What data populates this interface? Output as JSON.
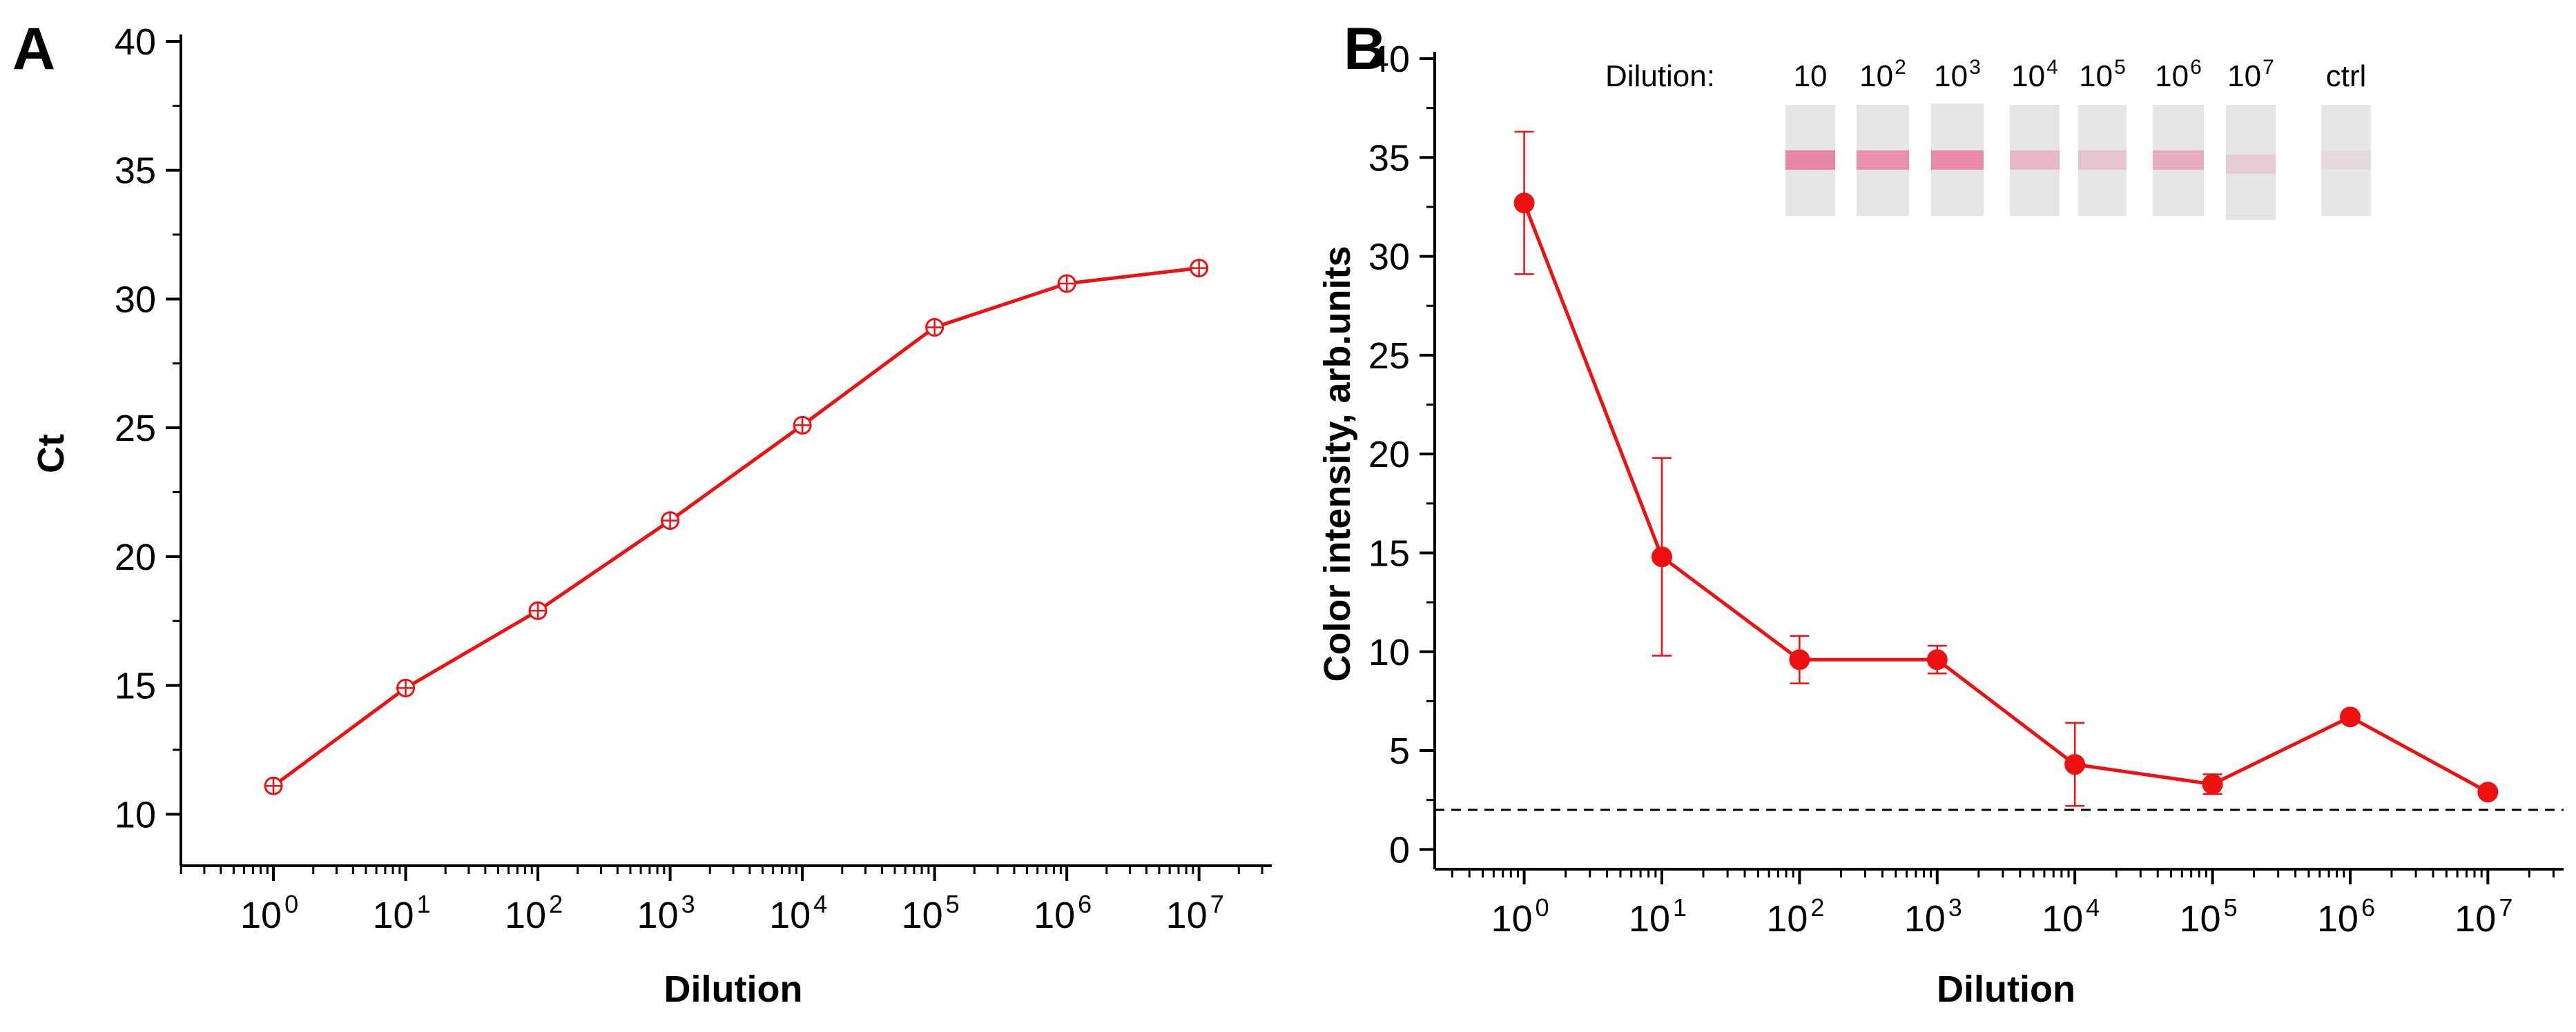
{
  "colors": {
    "series": "#ee1111",
    "axis": "#000000",
    "threshold": "#000000",
    "strip_bg": "#e7e5e6",
    "band": "#e83a72"
  },
  "chart_data": [
    {
      "panel": "A",
      "type": "line",
      "xscale": "log10",
      "x": [
        1,
        10,
        100,
        1000,
        10000,
        100000,
        1000000,
        10000000
      ],
      "xtick_labels": [
        {
          "base": "10",
          "exp": "0"
        },
        {
          "base": "10",
          "exp": "1"
        },
        {
          "base": "10",
          "exp": "2"
        },
        {
          "base": "10",
          "exp": "3"
        },
        {
          "base": "10",
          "exp": "4"
        },
        {
          "base": "10",
          "exp": "5"
        },
        {
          "base": "10",
          "exp": "6"
        },
        {
          "base": "10",
          "exp": "7"
        }
      ],
      "series": [
        {
          "name": "Ct",
          "values": [
            11.1,
            14.9,
            17.9,
            21.4,
            25.1,
            28.9,
            30.6,
            31.2
          ],
          "marker": "crossed-circle"
        }
      ],
      "xlabel": "Dilution",
      "ylabel": "Ct",
      "ylim": [
        8,
        40
      ],
      "yticks": [
        10,
        15,
        20,
        25,
        30,
        35,
        40
      ],
      "xlim_log": [
        -0.7,
        7.55
      ]
    },
    {
      "panel": "B",
      "type": "line",
      "xscale": "log10",
      "x": [
        1,
        10,
        100,
        1000,
        10000,
        100000,
        1000000,
        10000000
      ],
      "xtick_labels": [
        {
          "base": "10",
          "exp": "0"
        },
        {
          "base": "10",
          "exp": "1"
        },
        {
          "base": "10",
          "exp": "2"
        },
        {
          "base": "10",
          "exp": "3"
        },
        {
          "base": "10",
          "exp": "4"
        },
        {
          "base": "10",
          "exp": "5"
        },
        {
          "base": "10",
          "exp": "6"
        },
        {
          "base": "10",
          "exp": "7"
        }
      ],
      "series": [
        {
          "name": "Color intensity",
          "values": [
            32.7,
            14.8,
            9.6,
            9.6,
            4.3,
            3.3,
            6.7,
            2.9
          ],
          "errors": [
            3.6,
            5.0,
            1.2,
            0.7,
            2.1,
            0.5,
            0.0,
            0.0
          ],
          "marker": "filled-circle"
        }
      ],
      "threshold": 2.0,
      "xlabel": "Dilution",
      "ylabel": "Color intensity, arb.units",
      "ylim": [
        -1,
        40
      ],
      "yticks": [
        0,
        5,
        10,
        15,
        20,
        25,
        30,
        35,
        40
      ],
      "xlim_log": [
        -0.65,
        7.55
      ],
      "inset": {
        "title": "Dilution:",
        "strips": [
          {
            "label": {
              "base": "10",
              "exp": ""
            },
            "band_intensity": 0.75
          },
          {
            "label": {
              "base": "10",
              "exp": "2"
            },
            "band_intensity": 0.65
          },
          {
            "label": {
              "base": "10",
              "exp": "3"
            },
            "band_intensity": 0.7
          },
          {
            "label": {
              "base": "10",
              "exp": "4"
            },
            "band_intensity": 0.35
          },
          {
            "label": {
              "base": "10",
              "exp": "5"
            },
            "band_intensity": 0.25
          },
          {
            "label": {
              "base": "10",
              "exp": "6"
            },
            "band_intensity": 0.45
          },
          {
            "label": {
              "base": "10",
              "exp": "7"
            },
            "band_intensity": 0.2
          },
          {
            "label": {
              "base": "ctrl",
              "exp": ""
            },
            "band_intensity": 0.1
          }
        ]
      }
    }
  ]
}
